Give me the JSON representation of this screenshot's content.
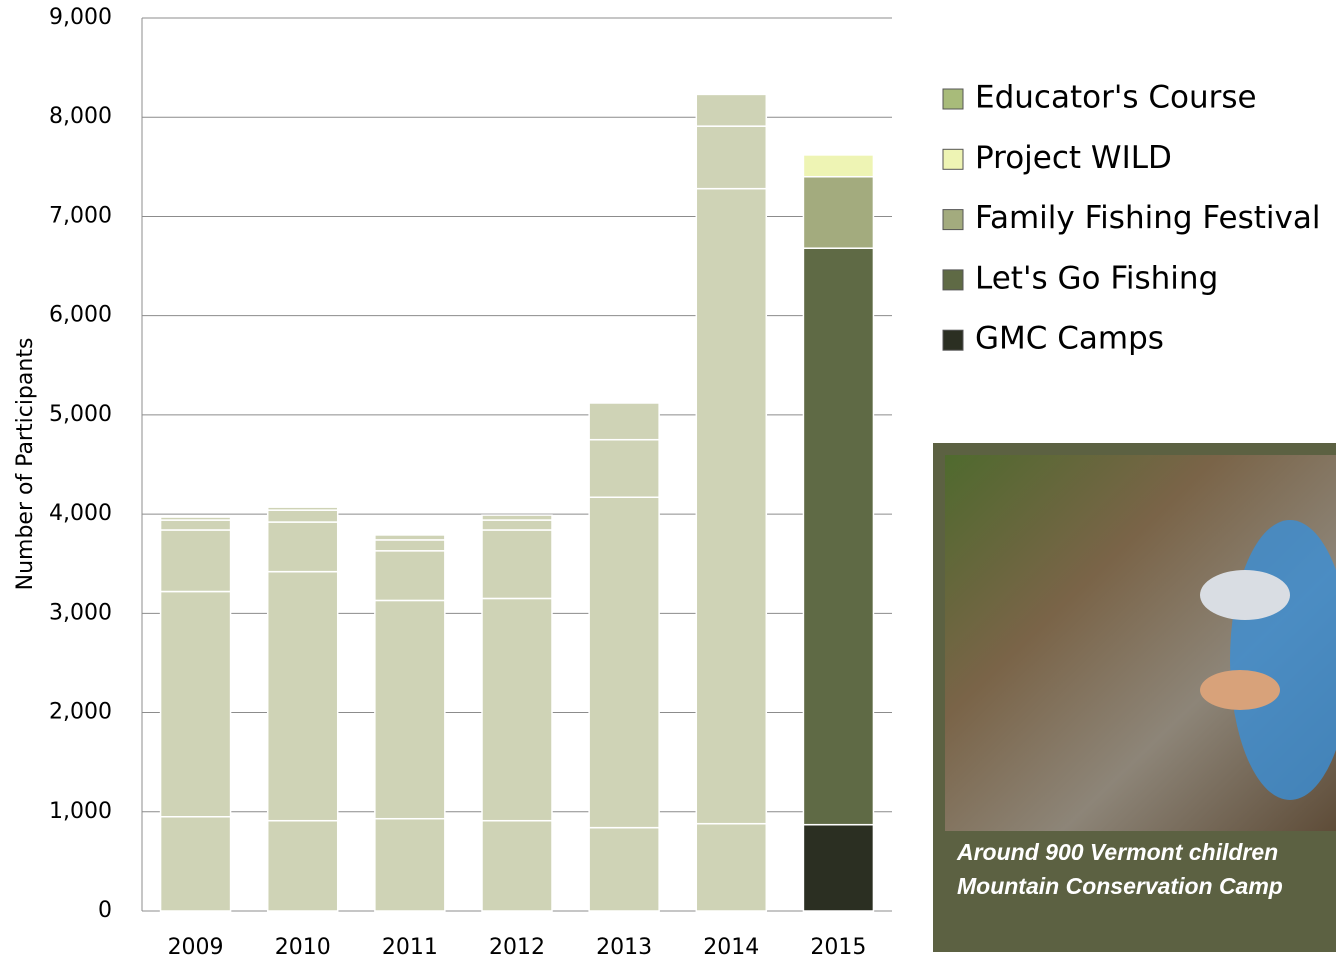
{
  "chart_data": {
    "type": "stacked-bar",
    "y_label": "Number of Participants",
    "categories": [
      "2009",
      "2010",
      "2011",
      "2012",
      "2013",
      "2014",
      "2015"
    ],
    "series": [
      {
        "name": "GMC Camps",
        "color": "#2b2f22",
        "values": [
          950,
          910,
          930,
          910,
          840,
          880,
          870
        ],
        "colors": [
          "#cfd3b6",
          "#cfd3b6",
          "#cfd3b6",
          "#cfd3b6",
          "#cfd3b6",
          "#cfd3b6",
          "#2b2f22"
        ]
      },
      {
        "name": "Let's Go Fishing",
        "color": "#5f6a45",
        "values": [
          2270,
          2510,
          2200,
          2240,
          3330,
          6400,
          5810
        ],
        "colors": [
          "#cfd3b6",
          "#cfd3b6",
          "#cfd3b6",
          "#cfd3b6",
          "#cfd3b6",
          "#cfd3b6",
          "#5f6a45"
        ]
      },
      {
        "name": "Family Fishing Festival",
        "color": "#a3ab7e",
        "values": [
          620,
          500,
          500,
          690,
          580,
          630,
          720
        ],
        "colors": [
          "#cfd3b6",
          "#cfd3b6",
          "#cfd3b6",
          "#cfd3b6",
          "#cfd3b6",
          "#cfd3b6",
          "#a3ab7e"
        ]
      },
      {
        "name": "Project WILD",
        "color": "#eef4b4",
        "values": [
          100,
          120,
          110,
          100,
          370,
          320,
          220
        ],
        "colors": [
          "#cfd3b6",
          "#cfd3b6",
          "#cfd3b6",
          "#cfd3b6",
          "#cfd3b6",
          "#cfd3b6",
          "#eef4b4"
        ]
      },
      {
        "name": "Educator's Course",
        "color": "#a8bb7a",
        "values": [
          30,
          30,
          50,
          50,
          0,
          0,
          0
        ],
        "colors": [
          "#cfd3b6",
          "#cfd3b6",
          "#cfd3b6",
          "#cfd3b6",
          "#cfd3b6",
          "#cfd3b6",
          "#a8bb7a"
        ]
      }
    ],
    "ylim": [
      0,
      9000
    ],
    "yticks": [
      0,
      {
        "value": 1000,
        "label": "1,000"
      },
      {
        "value": 2000,
        "label": "2,000"
      },
      {
        "value": 3000,
        "label": "3,000"
      },
      {
        "value": 4000,
        "label": "4,000"
      },
      {
        "value": 5000,
        "label": "5,000"
      },
      {
        "value": 6000,
        "label": "6,000"
      },
      {
        "value": 7000,
        "label": "7,000"
      },
      {
        "value": 8000,
        "label": "8,000"
      },
      {
        "value": 9000,
        "label": "9,000"
      }
    ],
    "grid": true,
    "legend": "right"
  },
  "photo": {
    "caption": [
      "Around 900 Vermont children",
      "Mountain Conservation Camp"
    ]
  }
}
